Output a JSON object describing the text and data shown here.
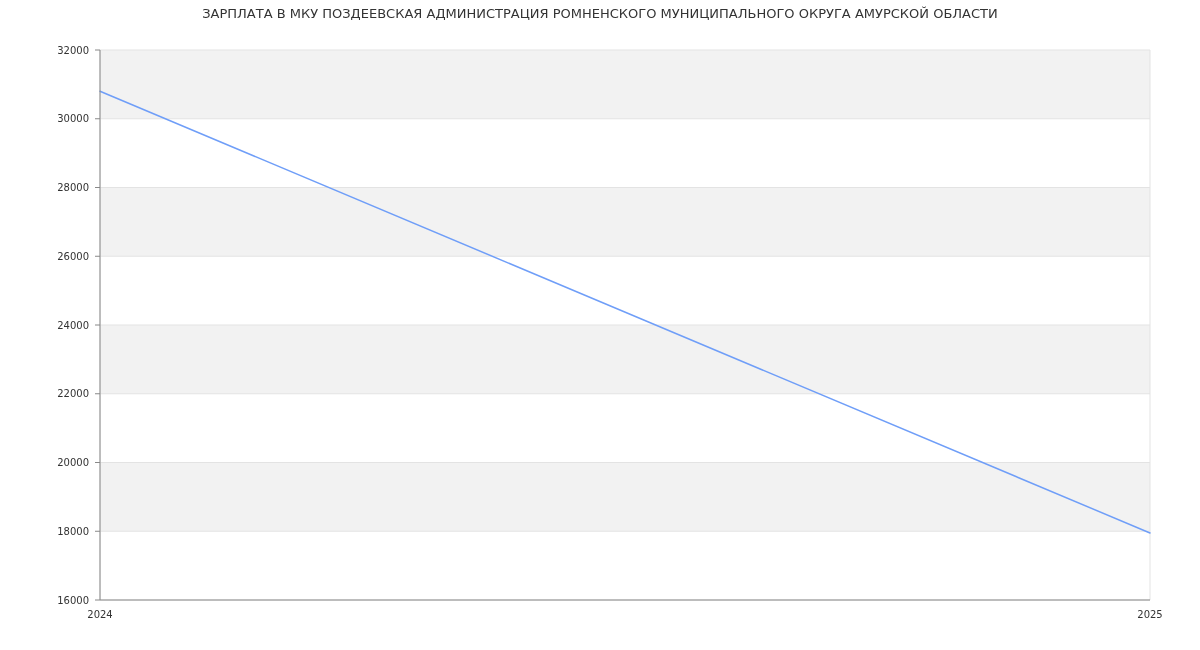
{
  "chart_data": {
    "type": "line",
    "title": "ЗАРПЛАТА В МКУ ПОЗДЕЕВСКАЯ АДМИНИСТРАЦИЯ РОМНЕНСКОГО МУНИЦИПАЛЬНОГО ОКРУГА АМУРСКОЙ ОБЛАСТИ",
    "x": [
      2024,
      2025
    ],
    "series": [
      {
        "color": "#6f9ef8",
        "values": [
          30800,
          17950
        ]
      }
    ],
    "xlim": [
      2024,
      2025
    ],
    "xticks": [
      2024,
      2025
    ],
    "ylim": [
      16000,
      32000
    ],
    "yticks": [
      16000,
      18000,
      20000,
      22000,
      24000,
      26000,
      28000,
      30000,
      32000
    ],
    "grid": true,
    "bands": [
      {
        "axis": "y",
        "from": 18000,
        "to": 20000,
        "color": "#f2f2f2"
      },
      {
        "axis": "y",
        "from": 22000,
        "to": 24000,
        "color": "#f2f2f2"
      },
      {
        "axis": "y",
        "from": 26000,
        "to": 28000,
        "color": "#f2f2f2"
      },
      {
        "axis": "y",
        "from": 30000,
        "to": 32000,
        "color": "#f2f2f2"
      }
    ]
  }
}
